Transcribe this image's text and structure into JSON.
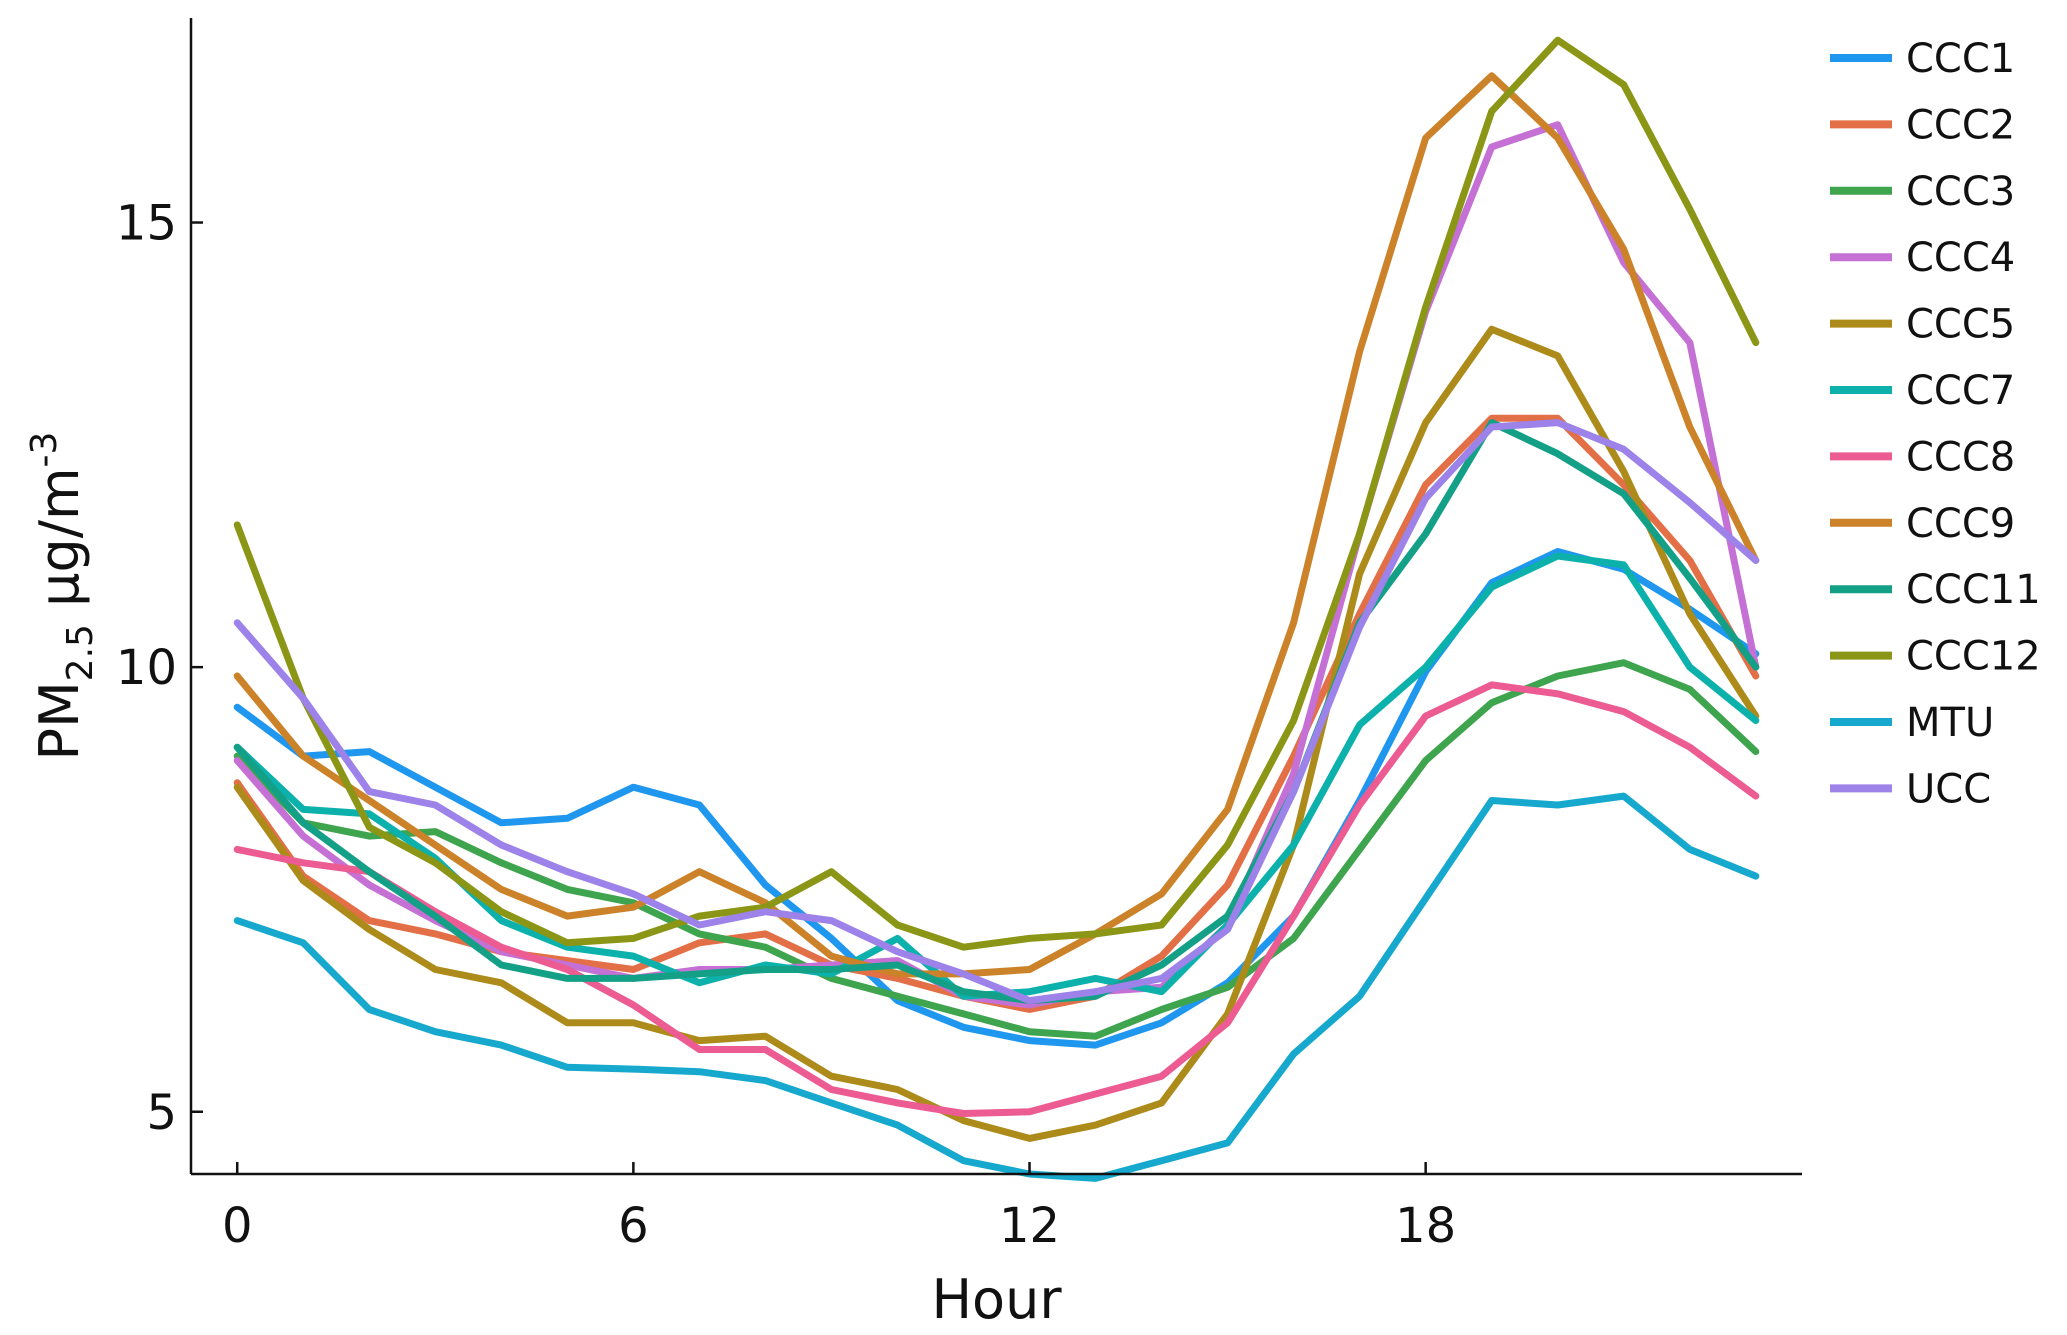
{
  "chart_data": {
    "type": "line",
    "xlabel": "Hour",
    "ylabel": {
      "base": "PM",
      "subscript": "2.5",
      "unit": " µg/m",
      "superscript": "-3"
    },
    "xlim": [
      -0.7,
      23.7
    ],
    "ylim": [
      4.3,
      17.3
    ],
    "xticks": [
      0,
      6,
      12,
      18
    ],
    "yticks": [
      5,
      10,
      15
    ],
    "grid": false,
    "legend_position": "right",
    "x": [
      0,
      1,
      2,
      3,
      4,
      5,
      6,
      7,
      8,
      9,
      10,
      11,
      12,
      13,
      14,
      15,
      16,
      17,
      18,
      19,
      20,
      21,
      22,
      23
    ],
    "series": [
      {
        "name": "CCC1",
        "color": "#1f97ef",
        "values": [
          9.55,
          9.0,
          9.05,
          8.65,
          8.25,
          8.3,
          8.65,
          8.45,
          7.55,
          6.95,
          6.25,
          5.95,
          5.8,
          5.75,
          6.0,
          6.45,
          7.2,
          8.5,
          9.95,
          10.95,
          11.3,
          11.1,
          10.65,
          10.15
        ]
      },
      {
        "name": "CCC2",
        "color": "#e36f47",
        "values": [
          8.7,
          7.65,
          7.15,
          7.0,
          6.8,
          6.7,
          6.6,
          6.9,
          7.0,
          6.65,
          6.5,
          6.3,
          6.15,
          6.3,
          6.75,
          7.55,
          9.0,
          10.6,
          12.05,
          12.8,
          12.8,
          12.05,
          11.2,
          9.9
        ]
      },
      {
        "name": "CCC3",
        "color": "#3ea44e",
        "values": [
          9.0,
          8.25,
          8.1,
          8.15,
          7.8,
          7.5,
          7.35,
          7.0,
          6.85,
          6.5,
          6.3,
          6.1,
          5.9,
          5.85,
          6.15,
          6.4,
          6.95,
          7.95,
          8.95,
          9.6,
          9.9,
          10.05,
          9.75,
          9.05
        ]
      },
      {
        "name": "CCC4",
        "color": "#c470d4",
        "values": [
          8.95,
          8.1,
          7.55,
          7.15,
          6.8,
          6.65,
          6.5,
          6.6,
          6.6,
          6.65,
          6.7,
          6.3,
          6.2,
          6.35,
          6.4,
          7.1,
          8.8,
          11.5,
          14.0,
          15.85,
          16.1,
          14.55,
          13.65,
          10.0
        ]
      },
      {
        "name": "CCC5",
        "color": "#ad8b1a",
        "values": [
          8.65,
          7.6,
          7.05,
          6.6,
          6.45,
          6.0,
          6.0,
          5.8,
          5.85,
          5.4,
          5.25,
          4.9,
          4.7,
          4.85,
          5.1,
          6.1,
          8.0,
          11.05,
          12.75,
          13.8,
          13.5,
          12.2,
          10.6,
          9.45
        ]
      },
      {
        "name": "CCC7",
        "color": "#0db1ab",
        "values": [
          9.1,
          8.4,
          8.35,
          7.85,
          7.15,
          6.85,
          6.75,
          6.45,
          6.65,
          6.55,
          6.95,
          6.3,
          6.35,
          6.5,
          6.35,
          7.1,
          8.0,
          9.35,
          10.0,
          10.9,
          11.25,
          11.15,
          10.0,
          9.4
        ]
      },
      {
        "name": "CCC8",
        "color": "#ec5b91",
        "values": [
          7.95,
          7.8,
          7.7,
          7.25,
          6.85,
          6.6,
          6.2,
          5.7,
          5.7,
          5.25,
          5.1,
          4.98,
          5.0,
          5.2,
          5.4,
          6.0,
          7.2,
          8.45,
          9.45,
          9.8,
          9.7,
          9.5,
          9.1,
          8.55
        ]
      },
      {
        "name": "CCC9",
        "color": "#cc8229",
        "values": [
          9.9,
          9.0,
          8.5,
          8.0,
          7.5,
          7.2,
          7.3,
          7.7,
          7.35,
          6.75,
          6.55,
          6.55,
          6.6,
          7.0,
          7.45,
          8.4,
          10.5,
          13.55,
          15.95,
          16.65,
          15.95,
          14.7,
          12.7,
          11.2
        ]
      },
      {
        "name": "CCC11",
        "color": "#14a087",
        "values": [
          9.1,
          8.25,
          7.7,
          7.2,
          6.65,
          6.5,
          6.5,
          6.55,
          6.6,
          6.6,
          6.65,
          6.35,
          6.25,
          6.3,
          6.65,
          7.2,
          8.6,
          10.5,
          11.5,
          12.75,
          12.4,
          11.95,
          11.0,
          10.0
        ]
      },
      {
        "name": "CCC12",
        "color": "#8b9616",
        "values": [
          11.6,
          9.65,
          8.2,
          7.8,
          7.25,
          6.9,
          6.95,
          7.2,
          7.3,
          7.7,
          7.1,
          6.85,
          6.95,
          7.0,
          7.1,
          8.0,
          9.4,
          11.5,
          14.05,
          16.25,
          17.05,
          16.55,
          15.15,
          13.65
        ]
      },
      {
        "name": "MTU",
        "color": "#16a8cd",
        "values": [
          7.15,
          6.9,
          6.15,
          5.9,
          5.75,
          5.5,
          5.48,
          5.45,
          5.35,
          5.1,
          4.85,
          4.45,
          4.3,
          4.25,
          4.45,
          4.65,
          5.65,
          6.3,
          7.4,
          8.5,
          8.45,
          8.55,
          7.95,
          7.65
        ]
      },
      {
        "name": "UCC",
        "color": "#9c82e9",
        "values": [
          10.5,
          9.65,
          8.6,
          8.45,
          8.0,
          7.7,
          7.45,
          7.1,
          7.25,
          7.15,
          6.8,
          6.55,
          6.25,
          6.35,
          6.5,
          7.05,
          8.6,
          10.45,
          11.9,
          12.7,
          12.75,
          12.45,
          11.85,
          11.2
        ]
      }
    ]
  }
}
